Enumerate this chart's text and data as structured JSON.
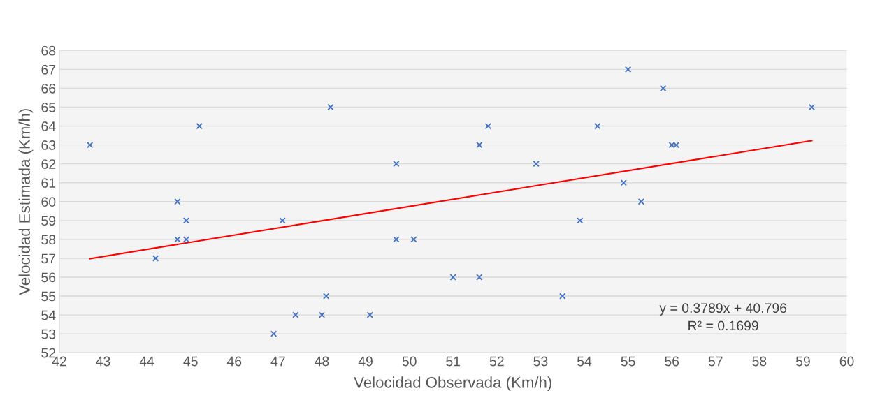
{
  "chart_data": {
    "type": "scatter",
    "xlabel": "Velocidad Observada (Km/h)",
    "ylabel": "Velocidad Estimada (Km/h)",
    "xlim": [
      42,
      60
    ],
    "xticks": [
      42,
      43,
      44,
      45,
      46,
      47,
      48,
      49,
      50,
      51,
      52,
      53,
      54,
      55,
      56,
      57,
      58,
      59,
      60
    ],
    "ylim": [
      52,
      68
    ],
    "yticks": [
      52,
      53,
      54,
      55,
      56,
      57,
      58,
      59,
      60,
      61,
      62,
      63,
      64,
      65,
      66,
      67,
      68
    ],
    "grid": "y",
    "series": [
      {
        "marker": "cross",
        "color": "#4472c4",
        "x": [
          42.7,
          44.2,
          44.7,
          44.7,
          44.9,
          44.9,
          45.2,
          46.9,
          47.1,
          47.4,
          48.0,
          48.1,
          48.2,
          49.1,
          49.7,
          49.7,
          50.1,
          51.0,
          51.6,
          51.6,
          51.8,
          52.9,
          53.5,
          53.9,
          54.3,
          54.9,
          55.0,
          55.3,
          55.8,
          56.0,
          56.1,
          59.2
        ],
        "values": [
          63,
          57,
          60,
          58,
          59,
          58,
          64,
          53,
          59,
          54,
          54,
          55,
          65,
          54,
          62,
          58,
          58,
          56,
          56,
          63,
          64,
          62,
          55,
          59,
          64,
          61,
          67,
          60,
          66,
          63,
          63,
          65
        ]
      },
      {
        "type": "line",
        "color": "#ff0000",
        "x": [
          42.7,
          59.2
        ],
        "values": [
          56.98,
          63.23
        ]
      }
    ],
    "annotations": [
      "y = 0.3789x + 40.796\nR² = 0.1699"
    ]
  }
}
